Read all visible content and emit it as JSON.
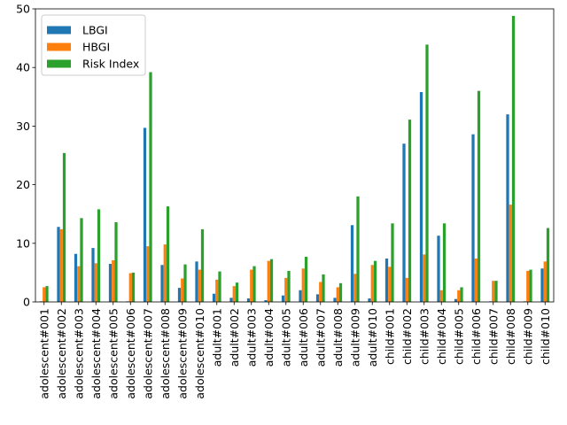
{
  "chart_data": {
    "type": "bar",
    "title": "",
    "xlabel": "",
    "ylabel": "",
    "ylim": [
      0,
      50
    ],
    "yticks": [
      0,
      10,
      20,
      30,
      40,
      50
    ],
    "grid": false,
    "legend_position": "top-left",
    "categories": [
      "adolescent#001",
      "adolescent#002",
      "adolescent#003",
      "adolescent#004",
      "adolescent#005",
      "adolescent#006",
      "adolescent#007",
      "adolescent#008",
      "adolescent#009",
      "adolescent#010",
      "adult#001",
      "adult#002",
      "adult#003",
      "adult#004",
      "adult#005",
      "adult#006",
      "adult#007",
      "adult#008",
      "adult#009",
      "adult#010",
      "child#001",
      "child#002",
      "child#003",
      "child#004",
      "child#005",
      "child#006",
      "child#007",
      "child#008",
      "child#009",
      "child#010"
    ],
    "series": [
      {
        "name": "LBGI",
        "color": "#1f77b4",
        "values": [
          0.1,
          12.8,
          8.2,
          9.2,
          6.5,
          0.1,
          29.7,
          6.3,
          2.4,
          6.9,
          1.4,
          0.7,
          0.6,
          0.3,
          1.1,
          2.0,
          1.3,
          0.7,
          13.1,
          0.6,
          7.4,
          27.0,
          35.8,
          11.3,
          0.5,
          28.6,
          0.1,
          32.0,
          0.1,
          5.7
        ]
      },
      {
        "name": "HBGI",
        "color": "#ff7f0e",
        "values": [
          2.5,
          12.4,
          6.1,
          6.6,
          7.1,
          4.9,
          9.5,
          9.8,
          4.0,
          5.5,
          3.8,
          2.7,
          5.5,
          7.0,
          4.1,
          5.7,
          3.4,
          2.5,
          4.8,
          6.3,
          6.0,
          4.1,
          8.1,
          2.0,
          2.0,
          7.4,
          3.6,
          16.6,
          5.3,
          6.9
        ]
      },
      {
        "name": "Risk Index",
        "color": "#2ca02c",
        "values": [
          2.7,
          25.4,
          14.3,
          15.8,
          13.6,
          5.0,
          39.2,
          16.3,
          6.4,
          12.4,
          5.2,
          3.3,
          6.1,
          7.3,
          5.3,
          7.7,
          4.7,
          3.2,
          18.0,
          7.0,
          13.4,
          31.1,
          43.9,
          13.4,
          2.5,
          36.0,
          3.6,
          48.8,
          5.5,
          12.6
        ]
      }
    ]
  }
}
